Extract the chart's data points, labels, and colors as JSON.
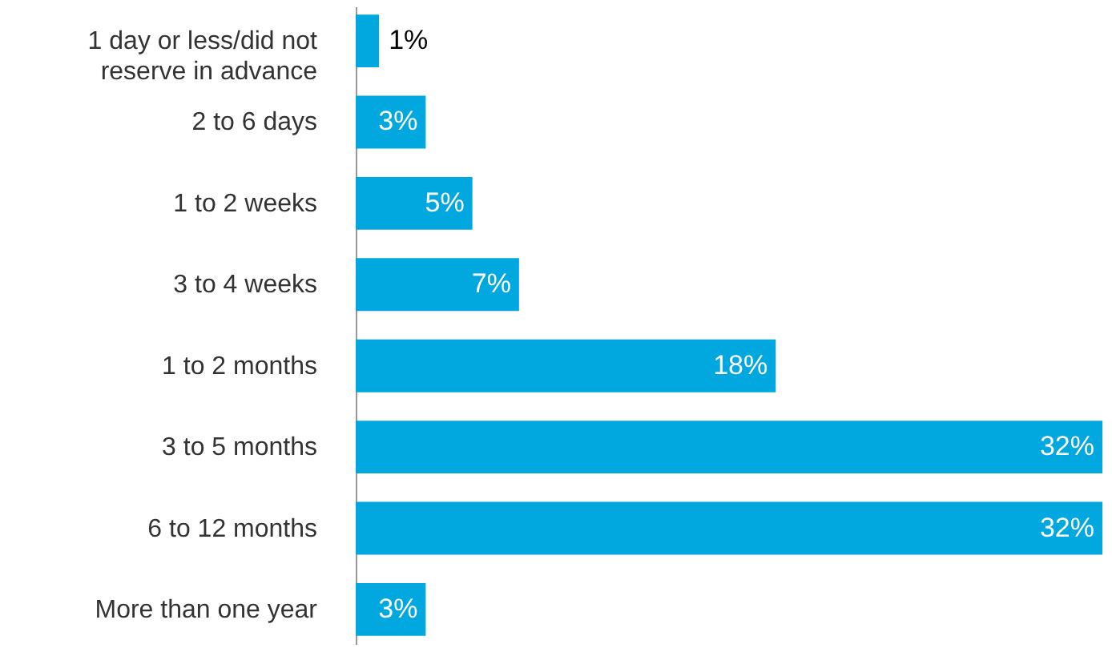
{
  "chart_data": {
    "type": "bar",
    "orientation": "horizontal",
    "categories": [
      "1 day or less/did not\nreserve in advance",
      "2 to 6 days",
      "1 to 2 weeks",
      "3 to 4 weeks",
      "1 to 2 months",
      "3 to 5 months",
      "6 to 12 months",
      "More than one year"
    ],
    "values": [
      1,
      3,
      5,
      7,
      18,
      32,
      32,
      3
    ],
    "value_labels": [
      "1%",
      "3%",
      "5%",
      "7%",
      "18%",
      "32%",
      "32%",
      "3%"
    ],
    "color": "#00a8df",
    "xlim": [
      0,
      32
    ],
    "grid": false
  }
}
